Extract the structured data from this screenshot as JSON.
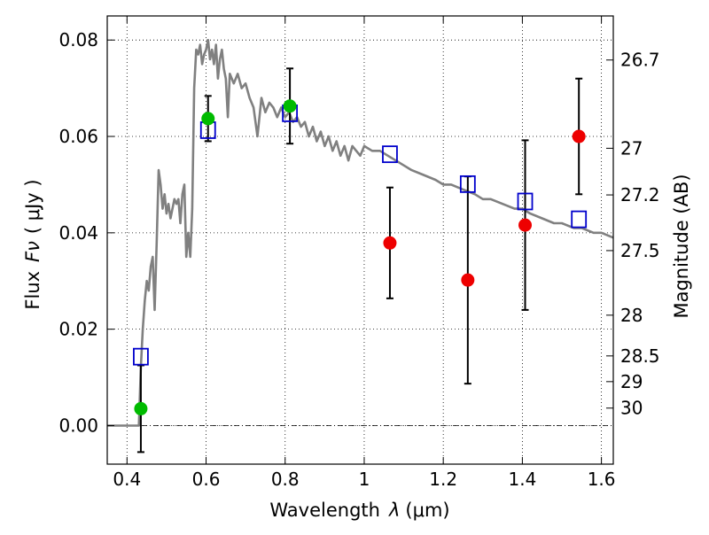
{
  "chart_data": {
    "type": "scatter",
    "xlabel_text": "Wavelength",
    "xlabel_symbol": "λ",
    "xlabel_unit": "(μm)",
    "ylabel_text": "Flux",
    "ylabel_symbol": "Fν",
    "ylabel_unit": "( μJy )",
    "y2label": "Magnitude (AB)",
    "xlim": [
      0.35,
      1.63
    ],
    "ylim": [
      -0.008,
      0.085
    ],
    "grid": true,
    "x_ticks": [
      {
        "value": 0.4,
        "label": "0.4"
      },
      {
        "value": 0.6,
        "label": "0.6"
      },
      {
        "value": 0.8,
        "label": "0.8"
      },
      {
        "value": 1.0,
        "label": "1"
      },
      {
        "value": 1.2,
        "label": "1.2"
      },
      {
        "value": 1.4,
        "label": "1.4"
      },
      {
        "value": 1.6,
        "label": "1.6"
      }
    ],
    "y_ticks": [
      {
        "value": 0.0,
        "label": "0.00"
      },
      {
        "value": 0.02,
        "label": "0.02"
      },
      {
        "value": 0.04,
        "label": "0.04"
      },
      {
        "value": 0.06,
        "label": "0.06"
      },
      {
        "value": 0.08,
        "label": "0.08"
      }
    ],
    "y2_ticks": [
      {
        "value": 26.7,
        "label": "26.7"
      },
      {
        "value": 27.0,
        "label": "27"
      },
      {
        "value": 27.2,
        "label": "27.2"
      },
      {
        "value": 27.5,
        "label": "27.5"
      },
      {
        "value": 28.0,
        "label": "28"
      },
      {
        "value": 28.5,
        "label": "28.5"
      },
      {
        "value": 29.0,
        "label": "29"
      },
      {
        "value": 30.0,
        "label": "30"
      }
    ],
    "model_spectrum": {
      "color": "#808080",
      "x": [
        0.35,
        0.43,
        0.435,
        0.44,
        0.445,
        0.45,
        0.455,
        0.46,
        0.465,
        0.47,
        0.475,
        0.48,
        0.485,
        0.49,
        0.495,
        0.5,
        0.505,
        0.51,
        0.515,
        0.52,
        0.525,
        0.53,
        0.535,
        0.54,
        0.545,
        0.55,
        0.555,
        0.56,
        0.565,
        0.57,
        0.575,
        0.58,
        0.585,
        0.59,
        0.595,
        0.6,
        0.605,
        0.61,
        0.615,
        0.62,
        0.625,
        0.63,
        0.635,
        0.64,
        0.645,
        0.65,
        0.655,
        0.66,
        0.67,
        0.68,
        0.69,
        0.7,
        0.71,
        0.72,
        0.73,
        0.74,
        0.75,
        0.76,
        0.77,
        0.78,
        0.79,
        0.8,
        0.81,
        0.82,
        0.83,
        0.84,
        0.85,
        0.86,
        0.87,
        0.88,
        0.89,
        0.9,
        0.91,
        0.92,
        0.93,
        0.94,
        0.95,
        0.96,
        0.97,
        0.98,
        0.99,
        1.0,
        1.02,
        1.04,
        1.06,
        1.08,
        1.1,
        1.12,
        1.15,
        1.18,
        1.2,
        1.22,
        1.25,
        1.28,
        1.3,
        1.32,
        1.35,
        1.38,
        1.4,
        1.42,
        1.45,
        1.48,
        1.5,
        1.53,
        1.55,
        1.58,
        1.6,
        1.63
      ],
      "y": [
        0.0,
        0.0,
        0.012,
        0.02,
        0.026,
        0.03,
        0.028,
        0.033,
        0.035,
        0.024,
        0.038,
        0.053,
        0.05,
        0.045,
        0.048,
        0.044,
        0.046,
        0.043,
        0.045,
        0.047,
        0.046,
        0.047,
        0.042,
        0.048,
        0.05,
        0.035,
        0.04,
        0.035,
        0.045,
        0.07,
        0.078,
        0.077,
        0.079,
        0.075,
        0.077,
        0.078,
        0.08,
        0.076,
        0.078,
        0.075,
        0.079,
        0.072,
        0.076,
        0.078,
        0.074,
        0.072,
        0.064,
        0.073,
        0.071,
        0.073,
        0.07,
        0.071,
        0.068,
        0.066,
        0.06,
        0.068,
        0.065,
        0.067,
        0.066,
        0.064,
        0.066,
        0.064,
        0.065,
        0.063,
        0.064,
        0.062,
        0.063,
        0.06,
        0.062,
        0.059,
        0.061,
        0.058,
        0.06,
        0.057,
        0.059,
        0.056,
        0.058,
        0.055,
        0.058,
        0.057,
        0.056,
        0.058,
        0.057,
        0.057,
        0.056,
        0.055,
        0.054,
        0.053,
        0.052,
        0.051,
        0.05,
        0.05,
        0.049,
        0.048,
        0.047,
        0.047,
        0.046,
        0.045,
        0.045,
        0.044,
        0.043,
        0.042,
        0.042,
        0.041,
        0.041,
        0.04,
        0.04,
        0.039
      ]
    },
    "model_photometry": {
      "color": "#0000cc",
      "marker": "open-square",
      "x": [
        0.435,
        0.605,
        0.812,
        1.065,
        1.262,
        1.407,
        1.543
      ],
      "y": [
        0.0143,
        0.0613,
        0.0648,
        0.0563,
        0.0501,
        0.0465,
        0.0428
      ]
    },
    "detections": {
      "color": "#00bb00",
      "marker": "filled-circle",
      "x": [
        0.435,
        0.605,
        0.812
      ],
      "y": [
        0.0035,
        0.0637,
        0.0663
      ],
      "yerr_low": [
        0.009,
        0.0047,
        0.0078
      ],
      "yerr_high": [
        0.009,
        0.0047,
        0.0078
      ]
    },
    "upper_limits": {
      "color": "#ee0000",
      "marker": "filled-circle",
      "x": [
        1.065,
        1.262,
        1.407,
        1.543
      ],
      "y": [
        0.0379,
        0.0302,
        0.0416,
        0.06
      ],
      "yerr_low": [
        0.0115,
        0.0215,
        0.0176,
        0.012
      ],
      "yerr_high": [
        0.0115,
        0.0215,
        0.0176,
        0.012
      ]
    }
  }
}
